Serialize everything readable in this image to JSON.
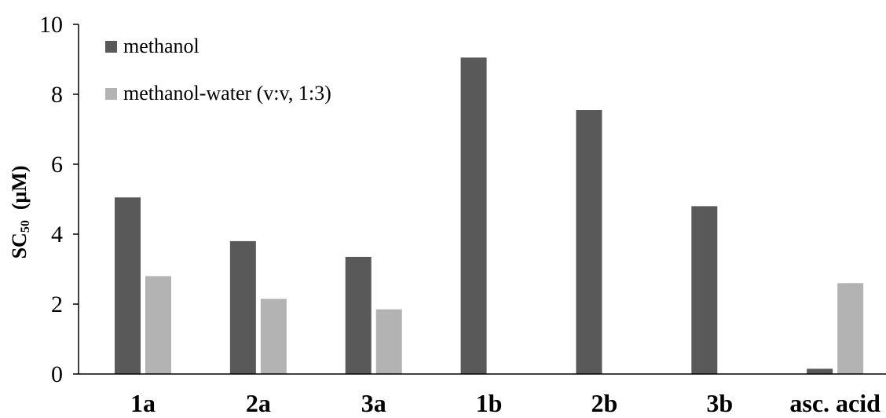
{
  "chart_data": {
    "type": "bar",
    "title": "",
    "xlabel": "",
    "ylabel": "SC50  (μM)",
    "ylabel_parts": [
      "SC",
      "50",
      "  (μM)"
    ],
    "ylim": [
      0,
      10
    ],
    "yticks": [
      0,
      2,
      4,
      6,
      8,
      10
    ],
    "grid": false,
    "legend_position": "top-left",
    "categories": [
      "1a",
      "2a",
      "3a",
      "1b",
      "2b",
      "3b",
      "asc. acid"
    ],
    "series": [
      {
        "name": "methanol",
        "color": "#595959",
        "values": [
          5.05,
          3.8,
          3.35,
          9.05,
          7.55,
          4.8,
          0.15
        ]
      },
      {
        "name": "methanol-water (v:v, 1:3)",
        "color": "#b3b3b3",
        "values": [
          2.8,
          2.15,
          1.85,
          null,
          null,
          null,
          2.6
        ]
      }
    ]
  }
}
